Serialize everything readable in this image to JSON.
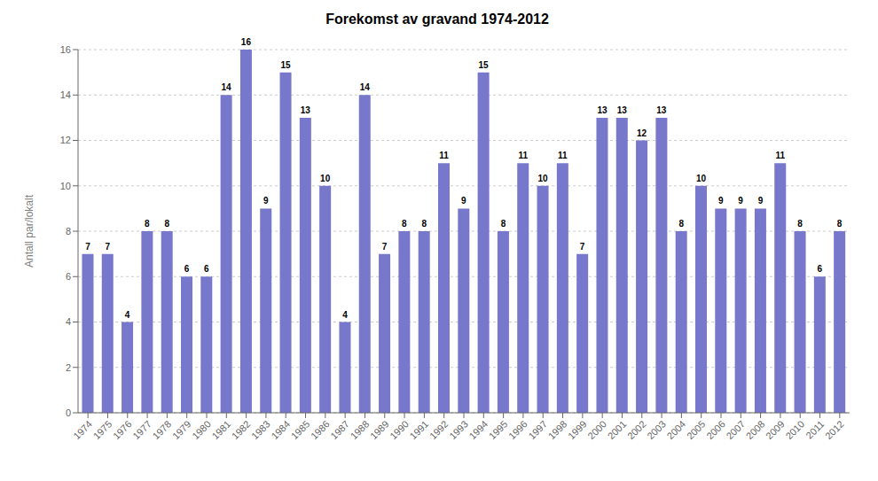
{
  "chart_data": {
    "type": "bar",
    "title": "Forekomst av gravand 1974-2012",
    "ylabel": "Antall par/lokalt",
    "categories": [
      "1974",
      "1975",
      "1976",
      "1977",
      "1978",
      "1979",
      "1980",
      "1981",
      "1982",
      "1983",
      "1984",
      "1985",
      "1986",
      "1987",
      "1988",
      "1989",
      "1990",
      "1991",
      "1992",
      "1993",
      "1994",
      "1995",
      "1996",
      "1997",
      "1998",
      "1999",
      "2000",
      "2001",
      "2002",
      "2003",
      "2004",
      "2005",
      "2006",
      "2007",
      "2008",
      "2009",
      "2010",
      "2011",
      "2012"
    ],
    "values": [
      7,
      7,
      4,
      8,
      8,
      6,
      6,
      14,
      16,
      9,
      15,
      13,
      10,
      4,
      14,
      7,
      8,
      8,
      11,
      9,
      15,
      8,
      11,
      10,
      11,
      7,
      13,
      13,
      12,
      13,
      8,
      10,
      9,
      9,
      9,
      11,
      8,
      6,
      8
    ],
    "color": "#7777cc",
    "ylim": [
      0,
      16
    ],
    "yticks": [
      0,
      2,
      4,
      6,
      8,
      10,
      12,
      14,
      16
    ],
    "grid": true,
    "data_labels": true
  }
}
